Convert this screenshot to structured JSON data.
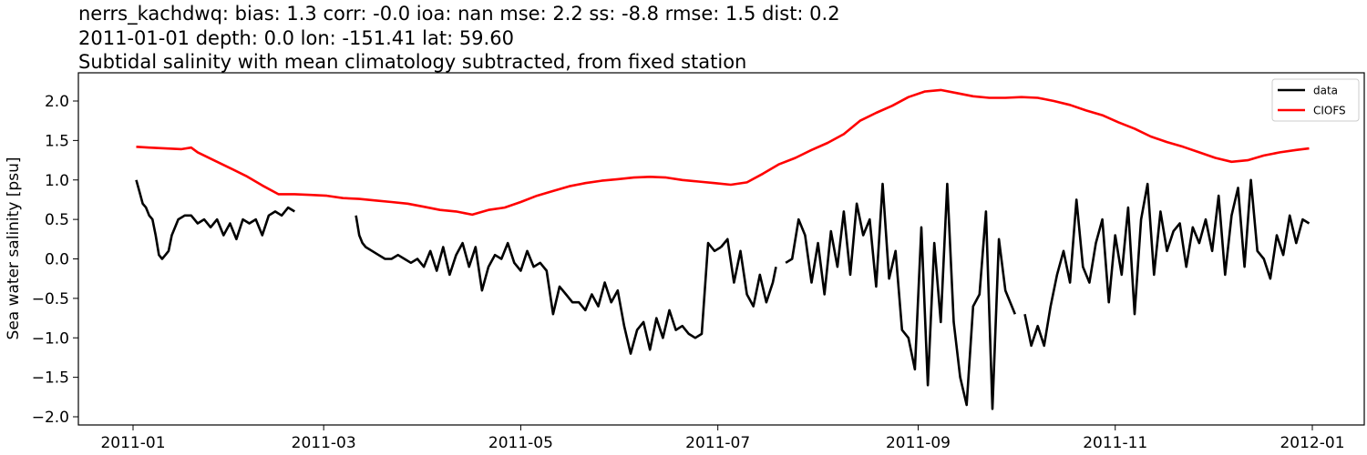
{
  "title": {
    "line1": "nerrs_kachdwq: bias: 1.3  corr: -0.0  ioa: nan  mse: 2.2  ss: -8.8  rmse: 1.5  dist: 0.2",
    "line2": "2011-01-01 depth: 0.0 lon: -151.41 lat: 59.60",
    "line3": "Subtidal salinity with mean climatology subtracted, from fixed station"
  },
  "colors": {
    "data": "#000000",
    "model": "#ff0000"
  },
  "chart_data": {
    "type": "line",
    "title": "nerrs_kachdwq: bias: 1.3  corr: -0.0  ioa: nan  mse: 2.2  ss: -8.8  rmse: 1.5  dist: 0.2 / 2011-01-01 depth: 0.0 lon: -151.41 lat: 59.60 / Subtidal salinity with mean climatology subtracted, from fixed station",
    "xlabel": "",
    "ylabel": "Sea water salinity [psu]",
    "ylim": [
      -2.1,
      2.35
    ],
    "xlim": [
      "2010-12-08",
      "2012-01-16"
    ],
    "xticks": [
      "2011-01",
      "2011-03",
      "2011-05",
      "2011-07",
      "2011-09",
      "2011-11",
      "2012-01"
    ],
    "yticks": [
      "−2.0",
      "−1.5",
      "−1.0",
      "−0.5",
      "0.0",
      "0.5",
      "1.0",
      "1.5",
      "2.0"
    ],
    "ytick_values": [
      -2.0,
      -1.5,
      -1.0,
      -0.5,
      0.0,
      0.5,
      1.0,
      1.5,
      2.0
    ],
    "legend": {
      "position": "upper right",
      "entries": [
        "data",
        "CIOFS"
      ]
    },
    "grid": false,
    "x_unit": "day of year 2011 (0 = 2011-01-01)",
    "series": [
      {
        "name": "data",
        "color": "#000000",
        "segments": [
          {
            "x": [
              1,
              2,
              3,
              4,
              5,
              6,
              7,
              8,
              9,
              10,
              11,
              12,
              13,
              14,
              16,
              18,
              20,
              22,
              24,
              26,
              28,
              30,
              32,
              34,
              36,
              38,
              40,
              42,
              44,
              46,
              48,
              50
            ],
            "y": [
              1.0,
              0.85,
              0.7,
              0.65,
              0.55,
              0.5,
              0.3,
              0.05,
              0.0,
              0.05,
              0.1,
              0.3,
              0.4,
              0.5,
              0.55,
              0.55,
              0.45,
              0.5,
              0.4,
              0.5,
              0.3,
              0.45,
              0.25,
              0.5,
              0.45,
              0.5,
              0.3,
              0.55,
              0.6,
              0.55,
              0.65,
              0.6
            ]
          },
          {
            "x": [
              69,
              70,
              71,
              72,
              74,
              76,
              78,
              80,
              82,
              84,
              86,
              88,
              90,
              92,
              94,
              96,
              98,
              100,
              102,
              104,
              106,
              108,
              110,
              112,
              114,
              116,
              118,
              120,
              122,
              124,
              126,
              128,
              130,
              132,
              134,
              136,
              138,
              140,
              142,
              144,
              146,
              148,
              150,
              152,
              154,
              156,
              158,
              160,
              162,
              164,
              166,
              168,
              170,
              172,
              174,
              176,
              178,
              180,
              182
            ],
            "y": [
              0.55,
              0.3,
              0.2,
              0.15,
              0.1,
              0.05,
              0.0,
              0.0,
              0.05,
              0.0,
              -0.05,
              0.0,
              -0.1,
              0.1,
              -0.15,
              0.15,
              -0.2,
              0.05,
              0.2,
              -0.1,
              0.15,
              -0.4,
              -0.1,
              0.05,
              0.0,
              0.2,
              -0.05,
              -0.15,
              0.1,
              -0.1,
              -0.05,
              -0.15,
              -0.7,
              -0.35,
              -0.45,
              -0.55,
              -0.55,
              -0.65,
              -0.45,
              -0.6,
              -0.3,
              -0.55,
              -0.4,
              -0.85,
              -1.2,
              -0.9,
              -0.8,
              -1.15,
              -0.75,
              -1.0,
              -0.65,
              -0.9,
              -0.85,
              -0.95,
              -1.0,
              -0.95,
              0.2,
              0.1,
              0.15
            ]
          },
          {
            "x": [
              182,
              184,
              186,
              188,
              190,
              192,
              194,
              196,
              198,
              199
            ],
            "y": [
              0.15,
              0.25,
              -0.3,
              0.1,
              -0.45,
              -0.6,
              -0.2,
              -0.55,
              -0.3,
              -0.1
            ]
          },
          {
            "x": [
              202,
              204,
              206,
              208,
              210,
              212,
              214,
              216,
              218,
              220,
              222,
              224,
              226,
              228,
              230,
              232,
              234,
              236,
              238,
              240,
              242,
              244,
              246,
              248,
              250,
              252,
              254,
              256,
              258,
              260,
              262,
              264,
              266,
              268,
              270,
              272,
              273
            ],
            "y": [
              -0.05,
              0.0,
              0.5,
              0.3,
              -0.3,
              0.2,
              -0.45,
              0.35,
              -0.1,
              0.6,
              -0.2,
              0.7,
              0.3,
              0.5,
              -0.35,
              0.95,
              -0.25,
              0.1,
              -0.9,
              -1.0,
              -1.4,
              0.4,
              -1.6,
              0.2,
              -0.8,
              0.95,
              -0.8,
              -1.5,
              -1.85,
              -0.6,
              -0.45,
              0.6,
              -1.9,
              0.25,
              -0.4,
              -0.6,
              -0.7
            ]
          },
          {
            "x": [
              276,
              278,
              280,
              282,
              284,
              286,
              288,
              290,
              292,
              294,
              296,
              298,
              300,
              302,
              304,
              306,
              308,
              310,
              312,
              314,
              316,
              318,
              320,
              322,
              324,
              326,
              328,
              330,
              332,
              334,
              336,
              338,
              340,
              342,
              344,
              346,
              348,
              350,
              352,
              354,
              356,
              358,
              360,
              362,
              364
            ],
            "y": [
              -0.7,
              -1.1,
              -0.85,
              -1.1,
              -0.6,
              -0.2,
              0.1,
              -0.3,
              0.75,
              -0.1,
              -0.3,
              0.2,
              0.5,
              -0.55,
              0.3,
              -0.2,
              0.65,
              -0.7,
              0.5,
              0.95,
              -0.2,
              0.6,
              0.1,
              0.35,
              0.45,
              -0.1,
              0.4,
              0.2,
              0.5,
              0.1,
              0.8,
              -0.2,
              0.55,
              0.9,
              -0.1,
              1.0,
              0.1,
              0.0,
              -0.25,
              0.3,
              0.05,
              0.55,
              0.2,
              0.5,
              0.45
            ]
          }
        ]
      },
      {
        "name": "CIOFS",
        "color": "#ff0000",
        "segments": [
          {
            "x": [
              1,
              5,
              10,
              15,
              18,
              20,
              25,
              30,
              35,
              40,
              45,
              50,
              55,
              60,
              65,
              70,
              75,
              80,
              85,
              90,
              95,
              100,
              105,
              110,
              115,
              120,
              125,
              130,
              135,
              140,
              145,
              150,
              155,
              160,
              165,
              170,
              175,
              180,
              185,
              190,
              195,
              200,
              205,
              210,
              215,
              220,
              225,
              230,
              235,
              240,
              245,
              250,
              255,
              260,
              265,
              270,
              275,
              280,
              285,
              290,
              295,
              300,
              305,
              310,
              315,
              320,
              325,
              330,
              335,
              340,
              345,
              350,
              355,
              360,
              364
            ],
            "y": [
              1.42,
              1.41,
              1.4,
              1.39,
              1.41,
              1.35,
              1.25,
              1.15,
              1.05,
              0.93,
              0.82,
              0.82,
              0.81,
              0.8,
              0.77,
              0.76,
              0.74,
              0.72,
              0.7,
              0.66,
              0.62,
              0.6,
              0.56,
              0.62,
              0.65,
              0.72,
              0.8,
              0.86,
              0.92,
              0.96,
              0.99,
              1.01,
              1.03,
              1.04,
              1.03,
              1.0,
              0.98,
              0.96,
              0.94,
              0.97,
              1.08,
              1.2,
              1.28,
              1.38,
              1.47,
              1.58,
              1.75,
              1.85,
              1.94,
              2.05,
              2.12,
              2.14,
              2.1,
              2.06,
              2.04,
              2.04,
              2.05,
              2.04,
              2.0,
              1.95,
              1.88,
              1.82,
              1.73,
              1.65,
              1.55,
              1.48,
              1.42,
              1.35,
              1.28,
              1.23,
              1.25,
              1.31,
              1.35,
              1.38,
              1.4
            ]
          }
        ]
      }
    ]
  }
}
